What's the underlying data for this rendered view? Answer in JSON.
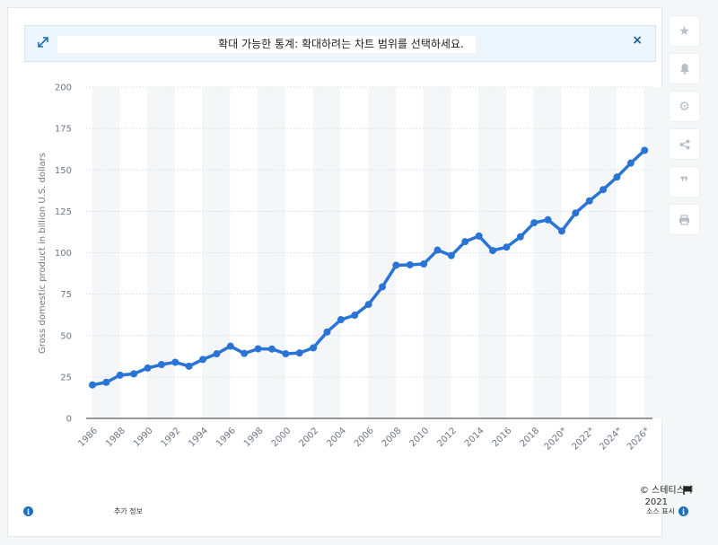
{
  "banner": {
    "message": "확대 가능한 통계: 확대하려는 차트 범위를 선택하세요.",
    "close_label": "×"
  },
  "toolbar": {
    "icons": [
      "star-icon",
      "bell-icon",
      "gear-icon",
      "share-icon",
      "quote-icon",
      "print-icon"
    ]
  },
  "footer": {
    "more_info": "추가 정보",
    "copyright": "© 스테티스타",
    "year": "2021",
    "source": "소스 표시"
  },
  "colors": {
    "line": "#2a74d6",
    "band": "#f5f6f8",
    "grid": "#cfd4da",
    "axis_text": "#6e7784"
  },
  "chart_data": {
    "type": "line",
    "ylabel": "Gross domestic product in billion U.S. dollars",
    "ylim": [
      0,
      200
    ],
    "yticks": [
      0,
      25,
      50,
      75,
      100,
      125,
      150,
      175,
      200
    ],
    "grid": true,
    "x_tick_labels": [
      "1986",
      "1988",
      "1990",
      "1992",
      "1994",
      "1996",
      "1998",
      "2000",
      "2002",
      "2004",
      "2006",
      "2008",
      "2010",
      "2012",
      "2014",
      "2016",
      "2018",
      "2020*",
      "2022*",
      "2024*",
      "2026*"
    ],
    "categories": [
      "1986",
      "1987",
      "1988",
      "1989",
      "1990",
      "1991",
      "1992",
      "1993",
      "1994",
      "1995",
      "1996",
      "1997",
      "1998",
      "1999",
      "2000",
      "2001",
      "2002",
      "2003",
      "2004",
      "2005",
      "2006",
      "2007",
      "2008",
      "2009",
      "2010",
      "2011",
      "2012",
      "2013",
      "2014",
      "2015",
      "2016",
      "2017",
      "2018",
      "2019",
      "2020*",
      "2021*",
      "2022*",
      "2023*",
      "2024*",
      "2025*",
      "2026*"
    ],
    "series": [
      {
        "values": [
          20.2,
          21.8,
          26.1,
          26.9,
          30.4,
          32.5,
          33.9,
          31.5,
          35.6,
          39.0,
          43.6,
          39.2,
          42.0,
          41.9,
          39.0,
          39.5,
          42.6,
          52.2,
          59.6,
          62.3,
          68.8,
          79.4,
          92.5,
          92.7,
          93.2,
          101.6,
          98.3,
          106.7,
          110.1,
          101.3,
          103.4,
          109.6,
          118.1,
          119.9,
          113.1,
          124.0,
          131.3,
          138.1,
          145.7,
          154.1,
          161.8
        ]
      }
    ]
  }
}
